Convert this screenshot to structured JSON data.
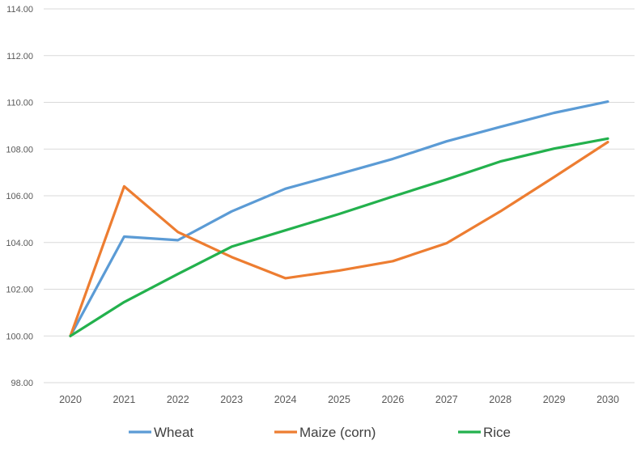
{
  "chart_data": {
    "type": "line",
    "title": "",
    "xlabel": "",
    "ylabel": "",
    "x": [
      "2020",
      "2021",
      "2022",
      "2023",
      "2024",
      "2025",
      "2026",
      "2027",
      "2028",
      "2029",
      "2030"
    ],
    "ylim": [
      98,
      114
    ],
    "y_ticks": [
      "98.00",
      "100.00",
      "102.00",
      "104.00",
      "106.00",
      "108.00",
      "110.00",
      "112.00",
      "114.00"
    ],
    "grid": true,
    "legend_position": "bottom",
    "series": [
      {
        "name": "Wheat",
        "color": "#5B9BD5",
        "values": [
          100.0,
          104.25,
          104.1,
          105.33,
          106.3,
          106.93,
          107.58,
          108.33,
          108.95,
          109.55,
          110.03
        ]
      },
      {
        "name": "Maize (corn)",
        "color": "#ED7D31",
        "values": [
          100.0,
          106.4,
          104.45,
          103.38,
          102.47,
          102.8,
          103.2,
          103.97,
          105.33,
          106.8,
          108.3
        ]
      },
      {
        "name": "Rice",
        "color": "#23B14D",
        "values": [
          100.0,
          101.45,
          102.65,
          103.82,
          104.52,
          105.22,
          105.97,
          106.7,
          107.47,
          108.02,
          108.45
        ]
      }
    ]
  }
}
